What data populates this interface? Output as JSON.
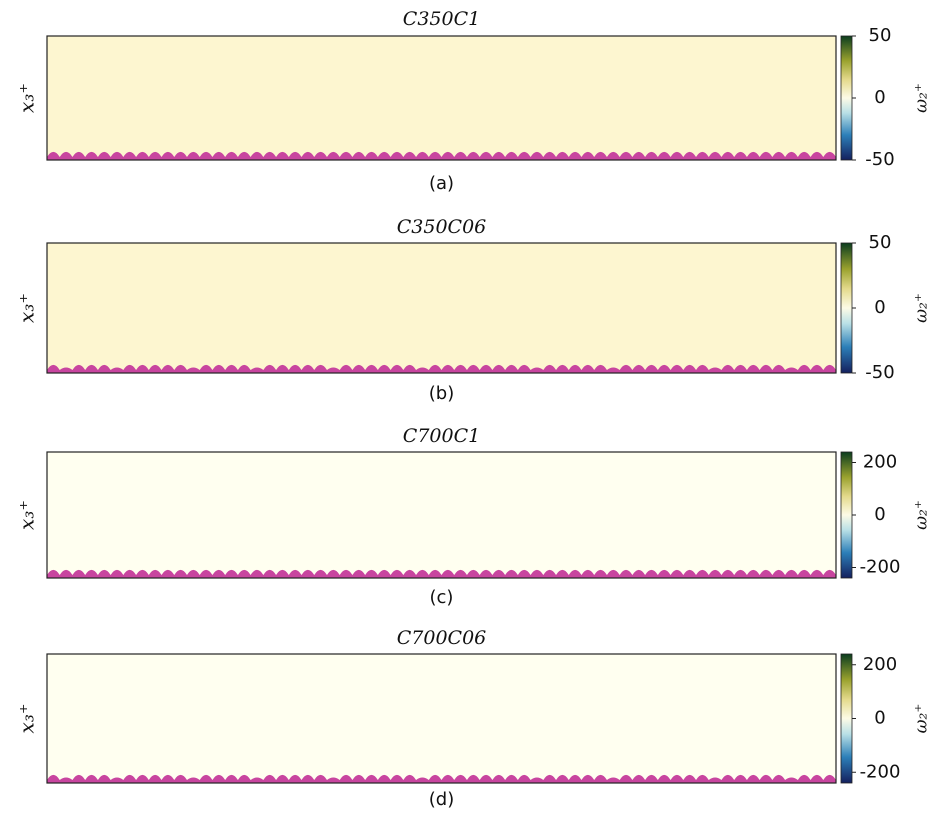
{
  "chart_data": [
    {
      "type": "heatmap",
      "title": "C350C1",
      "panel_label": "(a)",
      "ylabel": "x₃⁺",
      "colorbar_label": "ω₂⁺",
      "clim": [
        -50,
        50
      ],
      "cticks": [
        -50,
        0,
        50
      ]
    },
    {
      "type": "heatmap",
      "title": "C350C06",
      "panel_label": "(b)",
      "ylabel": "x₃⁺",
      "colorbar_label": "ω₂⁺",
      "clim": [
        -50,
        50
      ],
      "cticks": [
        -50,
        0,
        50
      ]
    },
    {
      "type": "heatmap",
      "title": "C700C1",
      "panel_label": "(c)",
      "ylabel": "x₃⁺",
      "colorbar_label": "ω₂⁺",
      "clim": [
        -240,
        240
      ],
      "cticks": [
        -200,
        0,
        200
      ]
    },
    {
      "type": "heatmap",
      "title": "C700C06",
      "panel_label": "(d)",
      "ylabel": "x₃⁺",
      "colorbar_label": "ω₂⁺",
      "clim": [
        -240,
        240
      ],
      "cticks": [
        -200,
        0,
        200
      ]
    }
  ]
}
